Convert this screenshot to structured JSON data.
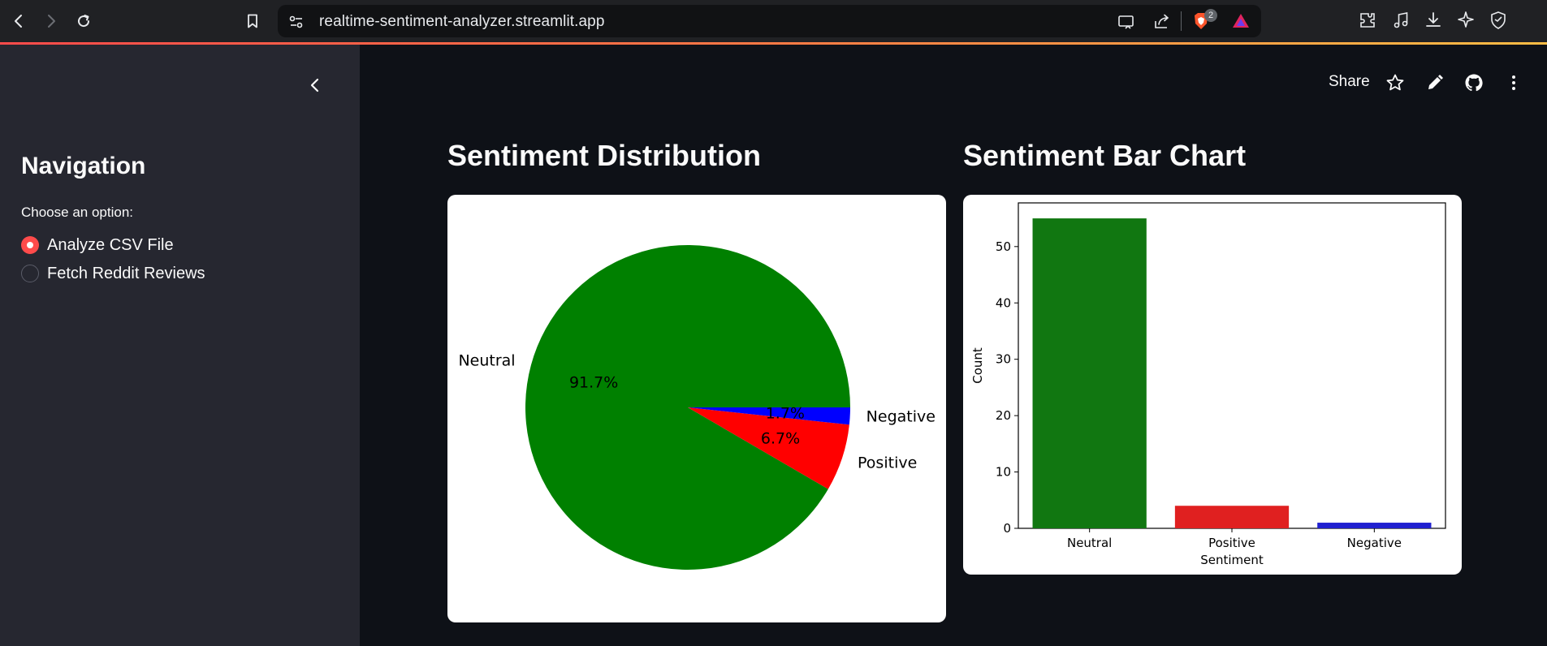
{
  "browser": {
    "url": "realtime-sentiment-analyzer.streamlit.app",
    "brave_count": "2",
    "icons": [
      "back-icon",
      "forward-icon",
      "reload-icon",
      "bookmark-icon",
      "site-settings-icon",
      "cast-icon",
      "share-icon",
      "brave-shield-icon",
      "brave-rewards-icon",
      "extensions-icon",
      "media-icon",
      "downloads-icon",
      "leo-ai-icon",
      "vpn-icon"
    ]
  },
  "sidebar": {
    "title": "Navigation",
    "choose_label": "Choose an option:",
    "options": [
      {
        "label": "Analyze CSV File",
        "selected": true
      },
      {
        "label": "Fetch Reddit Reviews",
        "selected": false
      }
    ],
    "accent_color": "#ff4b4b"
  },
  "toolbar": {
    "share_label": "Share",
    "icons": [
      "star-icon",
      "edit-icon",
      "github-icon",
      "more-icon"
    ]
  },
  "pie": {
    "title": "Sentiment Distribution"
  },
  "bar": {
    "title": "Sentiment Bar Chart"
  },
  "chart_data": [
    {
      "type": "pie",
      "labels": [
        "Neutral",
        "Positive",
        "Negative"
      ],
      "values": [
        91.7,
        6.7,
        1.7
      ],
      "pct_labels": [
        "91.7%",
        "6.7%",
        "1.7%"
      ],
      "colors": [
        "#008000",
        "#ff0000",
        "#0000ff"
      ],
      "start_angle_deg": 0,
      "direction": "clockwise-on-screen"
    },
    {
      "type": "bar",
      "categories": [
        "Neutral",
        "Positive",
        "Negative"
      ],
      "values": [
        55,
        4,
        1
      ],
      "colors": [
        "#117711",
        "#e02020",
        "#2020d0"
      ],
      "xlabel": "Sentiment",
      "ylabel": "Count",
      "ylim": [
        0,
        57.75
      ],
      "yticks": [
        0,
        10,
        20,
        30,
        40,
        50
      ],
      "grid": false
    }
  ]
}
